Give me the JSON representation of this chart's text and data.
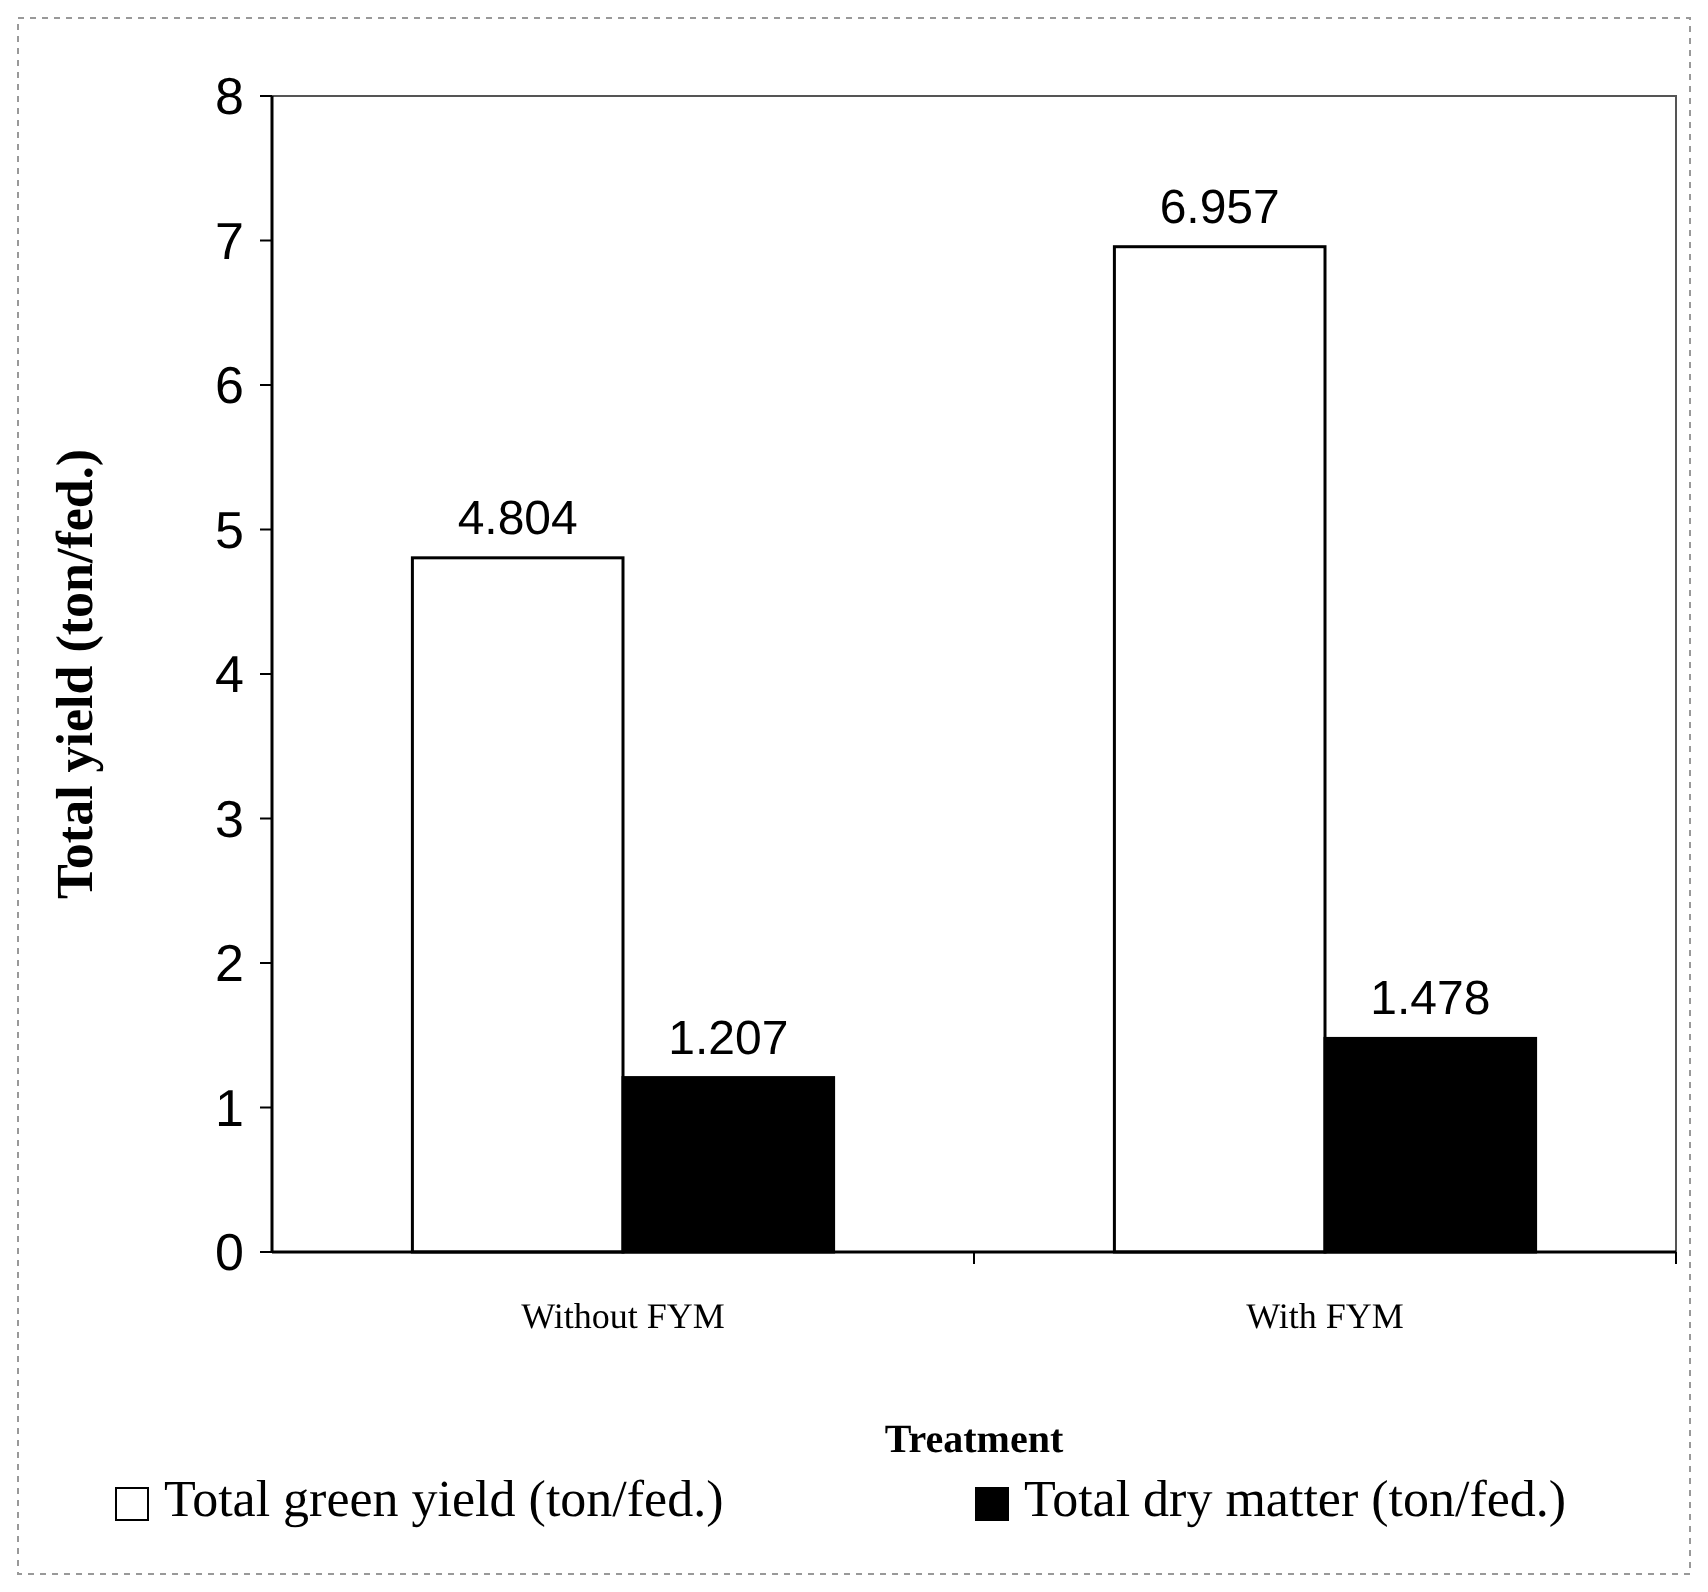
{
  "chart_data": {
    "type": "bar",
    "xlabel": "Treatment",
    "ylabel": "Total yield (ton/fed.)",
    "categories": [
      "Without FYM",
      "With FYM"
    ],
    "series": [
      {
        "name": "Total green yield (ton/fed.)",
        "color": "#ffffff",
        "values": [
          4.804,
          6.957
        ]
      },
      {
        "name": "Total dry matter (ton/fed.)",
        "color": "#000000",
        "values": [
          1.207,
          1.478
        ]
      }
    ],
    "ylim": [
      0,
      8
    ],
    "yticks": [
      0,
      1,
      2,
      3,
      4,
      5,
      6,
      7,
      8
    ],
    "data_labels": true,
    "legend": "bottom",
    "grid": false
  }
}
